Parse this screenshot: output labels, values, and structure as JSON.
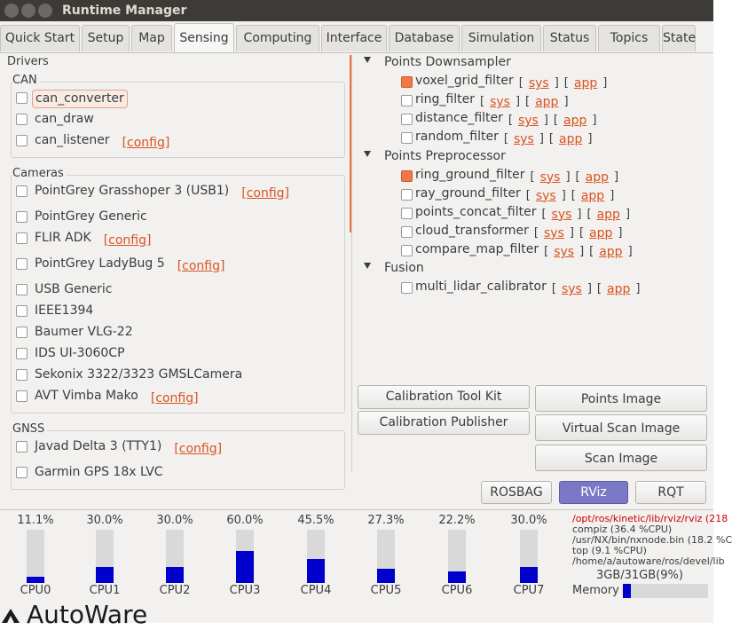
{
  "window": {
    "title": "Runtime Manager"
  },
  "tabs": {
    "items": [
      "Quick Start",
      "Setup",
      "Map",
      "Sensing",
      "Computing",
      "Interface",
      "Database",
      "Simulation",
      "Status",
      "Topics",
      "State"
    ],
    "active": 3
  },
  "left_panel": {
    "title": "Drivers",
    "groups": [
      {
        "title": "CAN",
        "items": [
          {
            "label": "can_converter",
            "selected": true
          },
          {
            "label": "can_draw"
          },
          {
            "label": "can_listener",
            "config": "[config]"
          }
        ]
      },
      {
        "title": "Cameras",
        "items": [
          {
            "label": "PointGrey Grasshoper 3 (USB1)",
            "config": "[config]"
          },
          {
            "label": "PointGrey Generic"
          },
          {
            "label": "FLIR ADK",
            "config": "[config]"
          },
          {
            "label": "PointGrey LadyBug 5",
            "config": "[config]"
          },
          {
            "label": "USB Generic"
          },
          {
            "label": "IEEE1394"
          },
          {
            "label": "Baumer VLG-22"
          },
          {
            "label": "IDS UI-3060CP"
          },
          {
            "label": "Sekonix 3322/3323 GMSLCamera"
          },
          {
            "label": "AVT Vimba Mako",
            "config": "[config]"
          }
        ]
      },
      {
        "title": "GNSS",
        "items": [
          {
            "label": "Javad Delta 3 (TTY1)",
            "config": "[config]"
          },
          {
            "label": "Garmin GPS 18x LVC"
          }
        ]
      }
    ]
  },
  "right_panel": {
    "brackets": [
      "[",
      "]"
    ],
    "sections": [
      {
        "title": "Points Downsampler",
        "items": [
          {
            "label": "voxel_grid_filter",
            "checked": true,
            "sys": "sys",
            "app": "app"
          },
          {
            "label": "ring_filter",
            "sys": "sys",
            "app": "app"
          },
          {
            "label": "distance_filter",
            "sys": "sys",
            "app": "app"
          },
          {
            "label": "random_filter",
            "sys": "sys",
            "app": "app"
          }
        ]
      },
      {
        "title": "Points Preprocessor",
        "items": [
          {
            "label": "ring_ground_filter",
            "checked": true,
            "sys": "sys",
            "app": "app"
          },
          {
            "label": "ray_ground_filter",
            "sys": "sys",
            "app": "app"
          },
          {
            "label": "points_concat_filter",
            "sys": "sys",
            "app": "app"
          },
          {
            "label": "cloud_transformer",
            "sys": "sys",
            "app": "app"
          },
          {
            "label": "compare_map_filter",
            "sys": "sys",
            "app": "app"
          }
        ]
      },
      {
        "title": "Fusion",
        "items": [
          {
            "label": "multi_lidar_calibrator",
            "sys": "sys",
            "app": "app"
          }
        ]
      }
    ]
  },
  "buttons": {
    "calibration": [
      "Calibration Tool Kit",
      "Calibration Publisher"
    ],
    "images": [
      "Points Image",
      "Virtual Scan Image",
      "Scan Image"
    ],
    "tools": [
      "ROSBAG",
      "RViz",
      "RQT"
    ],
    "active_tool": 1
  },
  "monitor": {
    "cpus": [
      {
        "name": "CPU0",
        "usage": {
          "value": 11.1,
          "label": "11.1%"
        }
      },
      {
        "name": "CPU1",
        "usage": {
          "value": 30.0,
          "label": "30.0%"
        }
      },
      {
        "name": "CPU2",
        "usage": {
          "value": 30.0,
          "label": "30.0%"
        }
      },
      {
        "name": "CPU3",
        "usage": {
          "value": 60.0,
          "label": "60.0%"
        }
      },
      {
        "name": "CPU4",
        "usage": {
          "value": 45.5,
          "label": "45.5%"
        }
      },
      {
        "name": "CPU5",
        "usage": {
          "value": 27.3,
          "label": "27.3%"
        }
      },
      {
        "name": "CPU6",
        "usage": {
          "value": 22.2,
          "label": "22.2%"
        }
      },
      {
        "name": "CPU7",
        "usage": {
          "value": 30.0,
          "label": "30.0%"
        }
      }
    ],
    "processes": [
      "/opt/ros/kinetic/lib/rviz/rviz (218",
      "compiz (36.4 %CPU)",
      "/usr/NX/bin/nxnode.bin (18.2 %C",
      "top (9.1 %CPU)",
      "/home/a/autoware/ros/devel/lib"
    ],
    "memory": {
      "name": "Memory",
      "label": "3GB/31GB(9%)",
      "percent": 9
    }
  },
  "logo": "AutoWare"
}
